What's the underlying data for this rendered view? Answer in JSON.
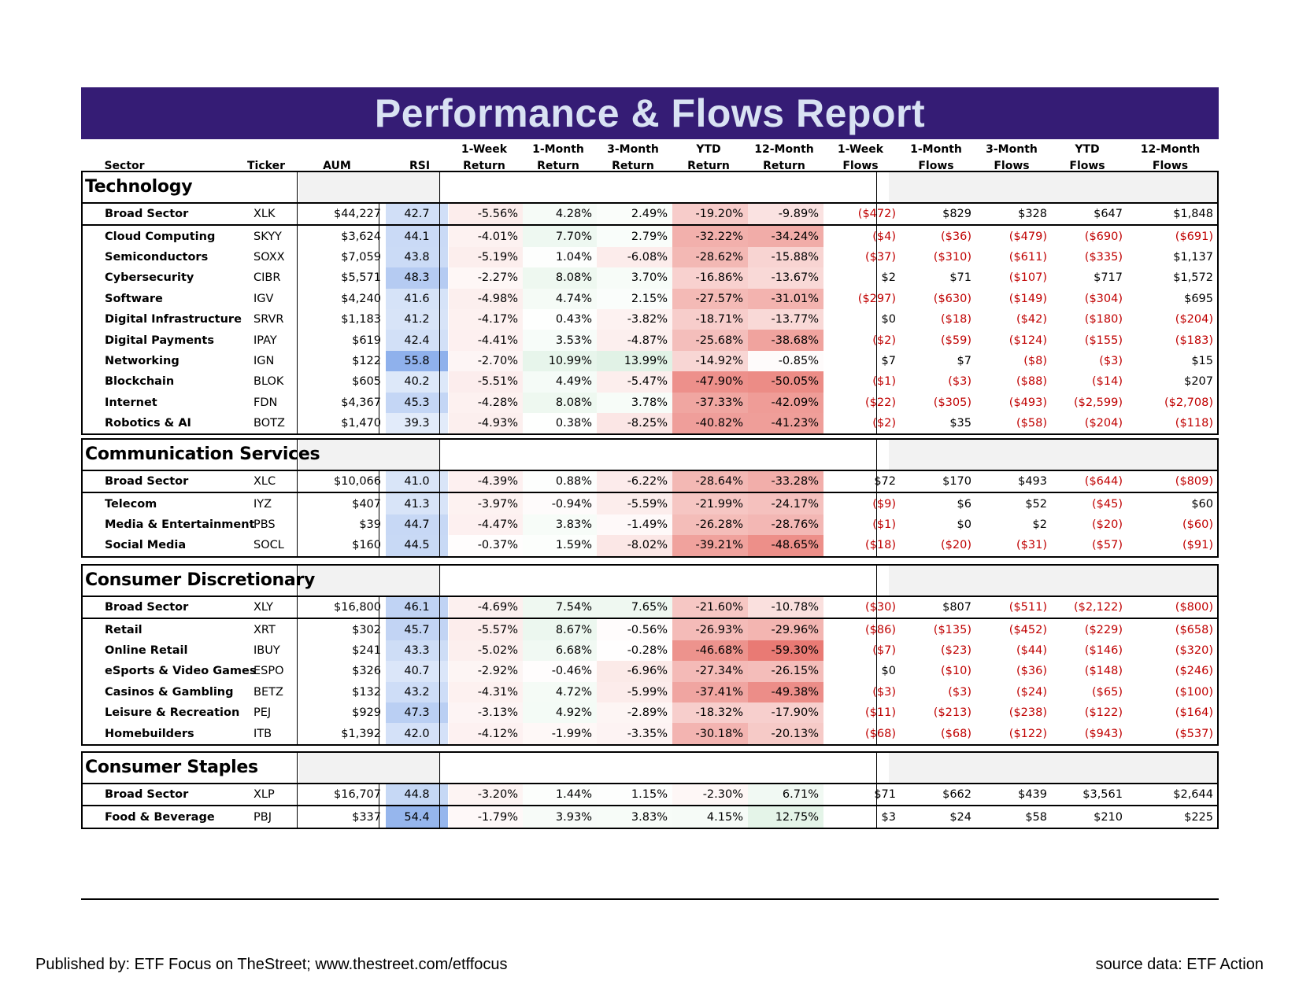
{
  "title": "Performance & Flows Report",
  "columns": [
    {
      "key": "sector",
      "line1": "",
      "line2": "Sector"
    },
    {
      "key": "ticker",
      "line1": "",
      "line2": "Ticker"
    },
    {
      "key": "aum",
      "line1": "",
      "line2": "AUM"
    },
    {
      "key": "rsi",
      "line1": "",
      "line2": "RSI"
    },
    {
      "key": "r1w",
      "line1": "1-Week",
      "line2": "Return"
    },
    {
      "key": "r1m",
      "line1": "1-Month",
      "line2": "Return"
    },
    {
      "key": "r3m",
      "line1": "3-Month",
      "line2": "Return"
    },
    {
      "key": "rytd",
      "line1": "YTD",
      "line2": "Return"
    },
    {
      "key": "r12m",
      "line1": "12-Month",
      "line2": "Return"
    },
    {
      "key": "f1w",
      "line1": "1-Week",
      "line2": "Flows"
    },
    {
      "key": "f1m",
      "line1": "1-Month",
      "line2": "Flows"
    },
    {
      "key": "f3m",
      "line1": "3-Month",
      "line2": "Flows"
    },
    {
      "key": "fytd",
      "line1": "YTD",
      "line2": "Flows"
    },
    {
      "key": "f12m",
      "line1": "12-Month",
      "line2": "Flows"
    }
  ],
  "sections": [
    {
      "name": "Technology",
      "rows": [
        {
          "sector": "Broad Sector",
          "ticker": "XLK",
          "aum": "$44,227",
          "rsi": "42.7",
          "returns": [
            "-5.56%",
            "4.28%",
            "2.49%",
            "-19.20%",
            "-9.89%"
          ],
          "flows": [
            "($472)",
            "$829",
            "$328",
            "$647",
            "$1,848"
          ]
        },
        {
          "sector": "Cloud Computing",
          "ticker": "SKYY",
          "aum": "$3,624",
          "rsi": "44.1",
          "returns": [
            "-4.01%",
            "7.70%",
            "2.79%",
            "-32.22%",
            "-34.24%"
          ],
          "flows": [
            "($4)",
            "($36)",
            "($479)",
            "($690)",
            "($691)"
          ]
        },
        {
          "sector": "Semiconductors",
          "ticker": "SOXX",
          "aum": "$7,059",
          "rsi": "43.8",
          "returns": [
            "-5.19%",
            "1.04%",
            "-6.08%",
            "-28.62%",
            "-15.88%"
          ],
          "flows": [
            "($37)",
            "($310)",
            "($611)",
            "($335)",
            "$1,137"
          ]
        },
        {
          "sector": "Cybersecurity",
          "ticker": "CIBR",
          "aum": "$5,571",
          "rsi": "48.3",
          "returns": [
            "-2.27%",
            "8.08%",
            "3.70%",
            "-16.86%",
            "-13.67%"
          ],
          "flows": [
            "$2",
            "$71",
            "($107)",
            "$717",
            "$1,572"
          ]
        },
        {
          "sector": "Software",
          "ticker": "IGV",
          "aum": "$4,240",
          "rsi": "41.6",
          "returns": [
            "-4.98%",
            "4.74%",
            "2.15%",
            "-27.57%",
            "-31.01%"
          ],
          "flows": [
            "($297)",
            "($630)",
            "($149)",
            "($304)",
            "$695"
          ]
        },
        {
          "sector": "Digital Infrastructure",
          "ticker": "SRVR",
          "aum": "$1,183",
          "rsi": "41.2",
          "returns": [
            "-4.17%",
            "0.43%",
            "-3.82%",
            "-18.71%",
            "-13.77%"
          ],
          "flows": [
            "$0",
            "($18)",
            "($42)",
            "($180)",
            "($204)"
          ]
        },
        {
          "sector": "Digital Payments",
          "ticker": "IPAY",
          "aum": "$619",
          "rsi": "42.4",
          "returns": [
            "-4.41%",
            "3.53%",
            "-4.87%",
            "-25.68%",
            "-38.68%"
          ],
          "flows": [
            "($2)",
            "($59)",
            "($124)",
            "($155)",
            "($183)"
          ]
        },
        {
          "sector": "Networking",
          "ticker": "IGN",
          "aum": "$122",
          "rsi": "55.8",
          "returns": [
            "-2.70%",
            "10.99%",
            "13.99%",
            "-14.92%",
            "-0.85%"
          ],
          "flows": [
            "$7",
            "$7",
            "($8)",
            "($3)",
            "$15"
          ]
        },
        {
          "sector": "Blockchain",
          "ticker": "BLOK",
          "aum": "$605",
          "rsi": "40.2",
          "returns": [
            "-5.51%",
            "4.49%",
            "-5.47%",
            "-47.90%",
            "-50.05%"
          ],
          "flows": [
            "($1)",
            "($3)",
            "($88)",
            "($14)",
            "$207"
          ]
        },
        {
          "sector": "Internet",
          "ticker": "FDN",
          "aum": "$4,367",
          "rsi": "45.3",
          "returns": [
            "-4.28%",
            "8.08%",
            "3.78%",
            "-37.33%",
            "-42.09%"
          ],
          "flows": [
            "($22)",
            "($305)",
            "($493)",
            "($2,599)",
            "($2,708)"
          ]
        },
        {
          "sector": "Robotics & AI",
          "ticker": "BOTZ",
          "aum": "$1,470",
          "rsi": "39.3",
          "returns": [
            "-4.93%",
            "0.38%",
            "-8.25%",
            "-40.82%",
            "-41.23%"
          ],
          "flows": [
            "($2)",
            "$35",
            "($58)",
            "($204)",
            "($118)"
          ]
        }
      ]
    },
    {
      "name": "Communication Services",
      "rows": [
        {
          "sector": "Broad Sector",
          "ticker": "XLC",
          "aum": "$10,066",
          "rsi": "41.0",
          "returns": [
            "-4.39%",
            "0.88%",
            "-6.22%",
            "-28.64%",
            "-33.28%"
          ],
          "flows": [
            "$72",
            "$170",
            "$493",
            "($644)",
            "($809)"
          ]
        },
        {
          "sector": "Telecom",
          "ticker": "IYZ",
          "aum": "$407",
          "rsi": "41.3",
          "returns": [
            "-3.97%",
            "-0.94%",
            "-5.59%",
            "-21.99%",
            "-24.17%"
          ],
          "flows": [
            "($9)",
            "$6",
            "$52",
            "($45)",
            "$60"
          ]
        },
        {
          "sector": "Media & Entertainment",
          "ticker": "PBS",
          "aum": "$39",
          "rsi": "44.7",
          "returns": [
            "-4.47%",
            "3.83%",
            "-1.49%",
            "-26.28%",
            "-28.76%"
          ],
          "flows": [
            "($1)",
            "$0",
            "$2",
            "($20)",
            "($60)"
          ]
        },
        {
          "sector": "Social Media",
          "ticker": "SOCL",
          "aum": "$160",
          "rsi": "44.5",
          "returns": [
            "-0.37%",
            "1.59%",
            "-8.02%",
            "-39.21%",
            "-48.65%"
          ],
          "flows": [
            "($18)",
            "($20)",
            "($31)",
            "($57)",
            "($91)"
          ]
        }
      ]
    },
    {
      "name": "Consumer Discretionary",
      "rows": [
        {
          "sector": "Broad Sector",
          "ticker": "XLY",
          "aum": "$16,800",
          "rsi": "46.1",
          "returns": [
            "-4.69%",
            "7.54%",
            "7.65%",
            "-21.60%",
            "-10.78%"
          ],
          "flows": [
            "($30)",
            "$807",
            "($511)",
            "($2,122)",
            "($800)"
          ]
        },
        {
          "sector": "Retail",
          "ticker": "XRT",
          "aum": "$302",
          "rsi": "45.7",
          "returns": [
            "-5.57%",
            "8.67%",
            "-0.56%",
            "-26.93%",
            "-29.96%"
          ],
          "flows": [
            "($86)",
            "($135)",
            "($452)",
            "($229)",
            "($658)"
          ]
        },
        {
          "sector": "Online Retail",
          "ticker": "IBUY",
          "aum": "$241",
          "rsi": "43.3",
          "returns": [
            "-5.02%",
            "6.68%",
            "-0.28%",
            "-46.68%",
            "-59.30%"
          ],
          "flows": [
            "($7)",
            "($23)",
            "($44)",
            "($146)",
            "($320)"
          ]
        },
        {
          "sector": "eSports & Video Games",
          "ticker": "ESPO",
          "aum": "$326",
          "rsi": "40.7",
          "returns": [
            "-2.92%",
            "-0.46%",
            "-6.96%",
            "-27.34%",
            "-26.15%"
          ],
          "flows": [
            "$0",
            "($10)",
            "($36)",
            "($148)",
            "($246)"
          ]
        },
        {
          "sector": "Casinos & Gambling",
          "ticker": "BETZ",
          "aum": "$132",
          "rsi": "43.2",
          "returns": [
            "-4.31%",
            "4.72%",
            "-5.99%",
            "-37.41%",
            "-49.38%"
          ],
          "flows": [
            "($3)",
            "($3)",
            "($24)",
            "($65)",
            "($100)"
          ]
        },
        {
          "sector": "Leisure & Recreation",
          "ticker": "PEJ",
          "aum": "$929",
          "rsi": "47.3",
          "returns": [
            "-3.13%",
            "4.92%",
            "-2.89%",
            "-18.32%",
            "-17.90%"
          ],
          "flows": [
            "($11)",
            "($213)",
            "($238)",
            "($122)",
            "($164)"
          ]
        },
        {
          "sector": "Homebuilders",
          "ticker": "ITB",
          "aum": "$1,392",
          "rsi": "42.0",
          "returns": [
            "-4.12%",
            "-1.99%",
            "-3.35%",
            "-30.18%",
            "-20.13%"
          ],
          "flows": [
            "($68)",
            "($68)",
            "($122)",
            "($943)",
            "($537)"
          ]
        }
      ]
    },
    {
      "name": "Consumer Staples",
      "rows": [
        {
          "sector": "Broad Sector",
          "ticker": "XLP",
          "aum": "$16,707",
          "rsi": "44.8",
          "returns": [
            "-3.20%",
            "1.44%",
            "1.15%",
            "-2.30%",
            "6.71%"
          ],
          "flows": [
            "$71",
            "$662",
            "$439",
            "$3,561",
            "$2,644"
          ]
        },
        {
          "sector": "Food & Beverage",
          "ticker": "PBJ",
          "aum": "$337",
          "rsi": "54.4",
          "returns": [
            "-1.79%",
            "3.93%",
            "3.83%",
            "4.15%",
            "12.75%"
          ],
          "flows": [
            "$3",
            "$24",
            "$58",
            "$210",
            "$225"
          ]
        }
      ]
    }
  ],
  "colors": {
    "title_bg": "#351C75",
    "title_text": "#D9E2F3",
    "negative_flow": "#C00000",
    "header_shade": "#F2F2F2",
    "rsi_low": "#E3ECFA",
    "rsi_high": "#8EB0EC",
    "return_negative": "#E8726B",
    "return_positive": "#63BE7B"
  },
  "footer": {
    "left": "Published by: ETF Focus on TheStreet; www.thestreet.com/etffocus",
    "right": "source data: ETF Action"
  }
}
